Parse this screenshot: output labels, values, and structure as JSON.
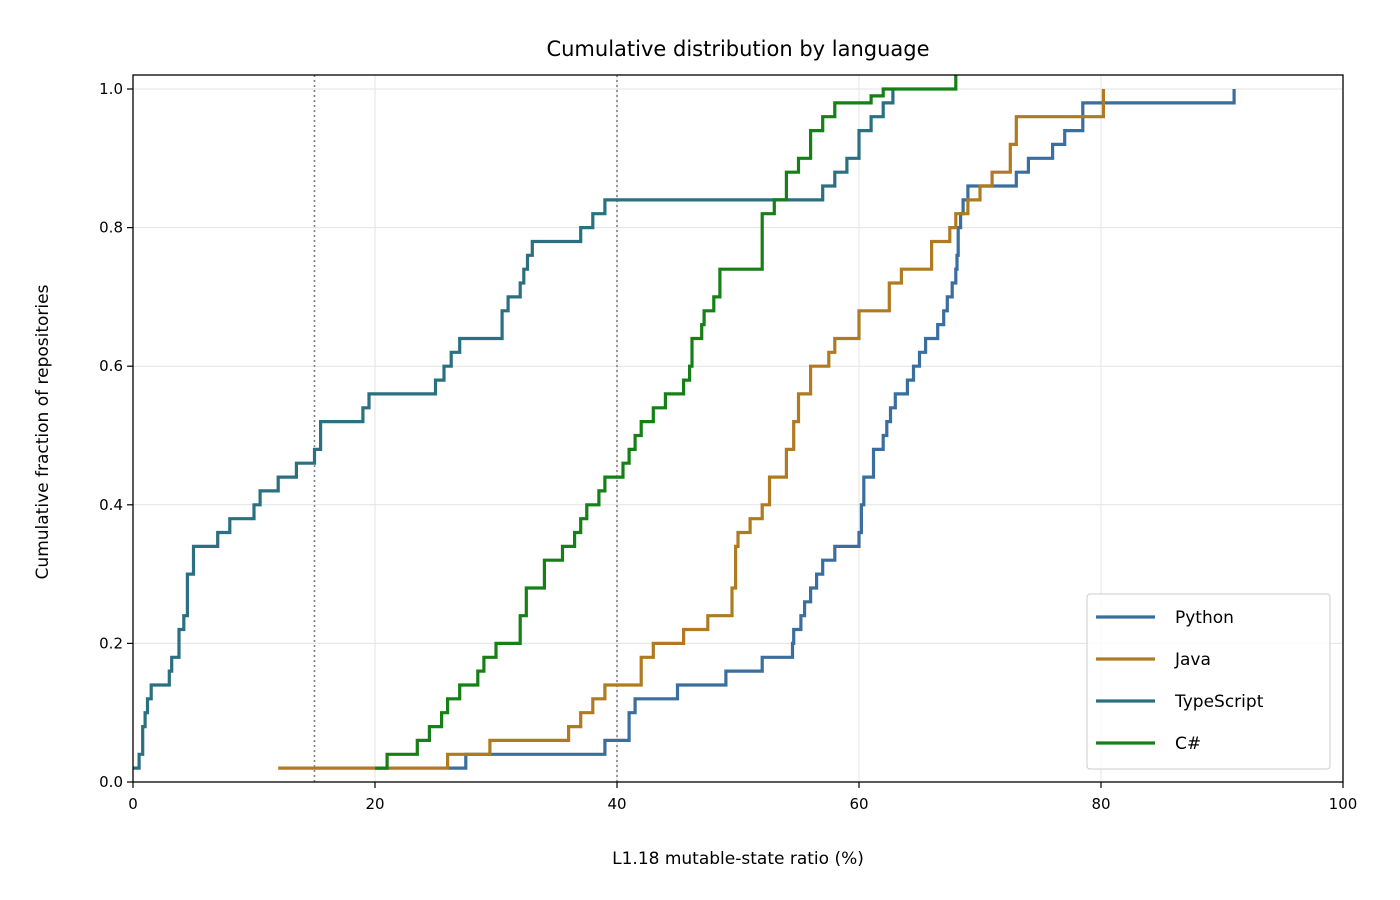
{
  "chart_data": {
    "type": "line",
    "step": "post",
    "title": "Cumulative distribution by language",
    "xlabel": "L1.18 mutable-state ratio (%)",
    "ylabel": "Cumulative fraction of repositories",
    "xlim": [
      0,
      100
    ],
    "ylim": [
      0,
      1.02
    ],
    "xticks": [
      0,
      20,
      40,
      60,
      80,
      100
    ],
    "xtick_labels": [
      "0",
      "20",
      "40",
      "60",
      "80",
      "100"
    ],
    "yticks": [
      0,
      0.2,
      0.4,
      0.6,
      0.8,
      1.0
    ],
    "ytick_labels": [
      "0.0",
      "0.2",
      "0.4",
      "0.6",
      "0.8",
      "1.0"
    ],
    "grid": true,
    "reference_lines_x": [
      15,
      40
    ],
    "legend_position": "lower right",
    "series": [
      {
        "name": "Python",
        "color": "#3a6e9f",
        "x": [
          26,
          27.5,
          39,
          41,
          41.5,
          45,
          49,
          52,
          54.5,
          54.6,
          55.2,
          55.5,
          56,
          56.5,
          57,
          58,
          60,
          60.2,
          60.4,
          61.2,
          62,
          62.3,
          62.6,
          63,
          64,
          64.5,
          65,
          65.5,
          66.5,
          67,
          67.3,
          67.7,
          68,
          68.1,
          68.2,
          68.4,
          68.6,
          69,
          73,
          74,
          76,
          77,
          78.5,
          91
        ],
        "y": [
          0.02,
          0.04,
          0.06,
          0.1,
          0.12,
          0.14,
          0.16,
          0.18,
          0.2,
          0.22,
          0.24,
          0.26,
          0.28,
          0.3,
          0.32,
          0.34,
          0.36,
          0.4,
          0.44,
          0.48,
          0.5,
          0.52,
          0.54,
          0.56,
          0.58,
          0.6,
          0.62,
          0.64,
          0.66,
          0.68,
          0.7,
          0.72,
          0.74,
          0.76,
          0.8,
          0.82,
          0.84,
          0.86,
          0.88,
          0.9,
          0.92,
          0.94,
          0.98,
          1.0
        ]
      },
      {
        "name": "Java",
        "color": "#b07a20",
        "x": [
          12,
          26,
          29.5,
          36,
          37,
          38,
          39,
          42,
          43,
          45.5,
          47.5,
          49.5,
          49.8,
          50,
          51,
          52,
          52.6,
          54,
          54.6,
          55,
          56,
          57.5,
          58,
          60,
          62.5,
          63.5,
          66,
          67.5,
          68,
          69,
          70,
          71,
          72.5,
          73,
          80.2
        ],
        "y": [
          0.02,
          0.04,
          0.06,
          0.08,
          0.1,
          0.12,
          0.14,
          0.18,
          0.2,
          0.22,
          0.24,
          0.28,
          0.34,
          0.36,
          0.38,
          0.4,
          0.44,
          0.48,
          0.52,
          0.56,
          0.6,
          0.62,
          0.64,
          0.68,
          0.72,
          0.74,
          0.78,
          0.8,
          0.82,
          0.84,
          0.86,
          0.88,
          0.92,
          0.96,
          1.0
        ]
      },
      {
        "name": "TypeScript",
        "color": "#2a7080",
        "x": [
          0,
          0.5,
          0.8,
          1,
          1.2,
          1.5,
          3,
          3.2,
          3.8,
          4.2,
          4.5,
          5,
          7,
          8,
          10,
          10.5,
          12,
          13.5,
          15,
          15.5,
          19,
          19.5,
          25,
          25.7,
          26.3,
          27,
          30.5,
          31,
          32,
          32.3,
          32.6,
          33,
          37,
          38,
          39,
          57,
          58,
          59,
          60,
          61,
          62,
          62.8
        ],
        "y": [
          0.02,
          0.04,
          0.08,
          0.1,
          0.12,
          0.14,
          0.16,
          0.18,
          0.22,
          0.24,
          0.3,
          0.34,
          0.36,
          0.38,
          0.4,
          0.42,
          0.44,
          0.46,
          0.48,
          0.52,
          0.54,
          0.56,
          0.58,
          0.6,
          0.62,
          0.64,
          0.68,
          0.7,
          0.72,
          0.74,
          0.76,
          0.78,
          0.8,
          0.82,
          0.84,
          0.86,
          0.88,
          0.9,
          0.94,
          0.96,
          0.98,
          1.0
        ]
      },
      {
        "name": "C#",
        "color": "#158015",
        "x": [
          20,
          21,
          23.5,
          24.5,
          25.5,
          26,
          27,
          28.5,
          29,
          30,
          32,
          32.5,
          34,
          35.5,
          36.5,
          37,
          37.5,
          38.5,
          39,
          40.5,
          41,
          41.5,
          42,
          43,
          44,
          45.5,
          46,
          46.2,
          47,
          47.2,
          48,
          48.5,
          52,
          53,
          54,
          55,
          56,
          57,
          58,
          61,
          62,
          68
        ],
        "y": [
          0.02,
          0.04,
          0.06,
          0.08,
          0.1,
          0.12,
          0.14,
          0.16,
          0.18,
          0.2,
          0.24,
          0.28,
          0.32,
          0.34,
          0.36,
          0.38,
          0.4,
          0.42,
          0.44,
          0.46,
          0.48,
          0.5,
          0.52,
          0.54,
          0.56,
          0.58,
          0.6,
          0.64,
          0.66,
          0.68,
          0.7,
          0.74,
          0.82,
          0.84,
          0.88,
          0.9,
          0.94,
          0.96,
          0.98,
          0.99,
          1.0,
          1.02
        ]
      }
    ]
  }
}
